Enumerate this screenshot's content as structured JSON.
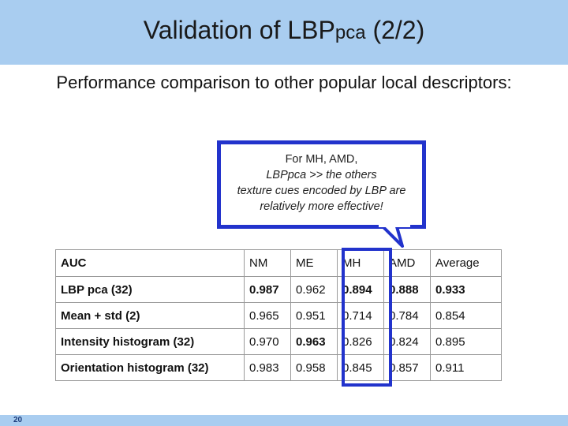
{
  "header": {
    "title_main": "Validation of LBP",
    "title_sub": "pca",
    "title_suffix": " (2/2)",
    "bar_color": "#a9cdf0"
  },
  "subtitle": "Performance comparison to other popular local descriptors:",
  "callout": {
    "line1": "For MH, AMD,",
    "line2": "LBPpca >> the others",
    "line3": "texture cues encoded by LBP are",
    "line4": "relatively more effective!",
    "border_color": "#2233cc"
  },
  "table": {
    "header": [
      "AUC",
      "NM",
      "ME",
      "MH",
      "AMD",
      "Average"
    ],
    "rows": [
      [
        "LBP pca (32)",
        "0.987",
        "0.962",
        "0.894",
        "0.888",
        "0.933"
      ],
      [
        "Mean + std (2)",
        "0.965",
        "0.951",
        "0.714",
        "0.784",
        "0.854"
      ],
      [
        "Intensity histogram (32)",
        "0.970",
        "0.963",
        "0.826",
        "0.824",
        "0.895"
      ],
      [
        "Orientation histogram (32)",
        "0.983",
        "0.958",
        "0.845",
        "0.857",
        "0.911"
      ]
    ]
  },
  "footer": {
    "page_number": "20"
  }
}
